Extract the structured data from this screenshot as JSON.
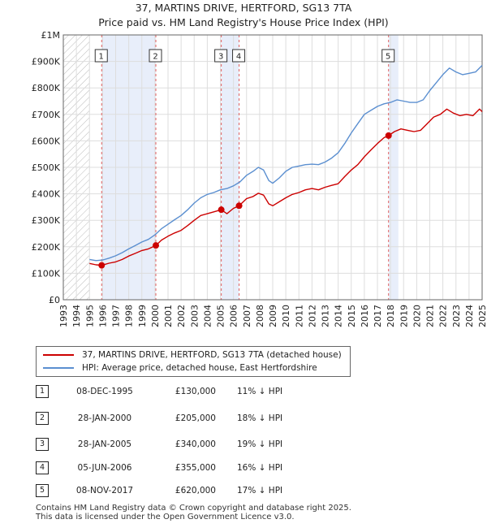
{
  "title_line1": "37, MARTINS DRIVE, HERTFORD, SG13 7TA",
  "title_line2": "Price paid vs. HM Land Registry's House Price Index (HPI)",
  "chart_data": {
    "type": "line",
    "xlim": [
      1993,
      2025
    ],
    "ylim": [
      0,
      1000000
    ],
    "y_ticks": [
      0,
      100000,
      200000,
      300000,
      400000,
      500000,
      600000,
      700000,
      800000,
      900000,
      1000000
    ],
    "y_tick_labels": [
      "£0",
      "£100K",
      "£200K",
      "£300K",
      "£400K",
      "£500K",
      "£600K",
      "£700K",
      "£800K",
      "£900K",
      "£1M"
    ],
    "x_tick_labels": [
      "1993",
      "1994",
      "1995",
      "1996",
      "1997",
      "1998",
      "1999",
      "2000",
      "2001",
      "2002",
      "2003",
      "2004",
      "2005",
      "2006",
      "2007",
      "2008",
      "2009",
      "2010",
      "2011",
      "2012",
      "2013",
      "2014",
      "2015",
      "2016",
      "2017",
      "2018",
      "2019",
      "2020",
      "2021",
      "2022",
      "2023",
      "2024",
      "2025"
    ],
    "hatched_before": 1995.0,
    "colors": {
      "property": "#cc0000",
      "hpi": "#5b8fd0",
      "shade": "#e8eefa",
      "vline": "#e06060"
    },
    "series": [
      {
        "name": "37, MARTINS DRIVE, HERTFORD, SG13 7TA (detached house)",
        "color": "#cc0000",
        "x": [
          1995.0,
          1995.5,
          1995.93,
          1996.5,
          1997.0,
          1997.5,
          1998.0,
          1998.5,
          1999.0,
          1999.5,
          2000.07,
          2000.5,
          2001.0,
          2001.5,
          2002.0,
          2002.5,
          2003.0,
          2003.5,
          2004.0,
          2004.5,
          2005.07,
          2005.5,
          2006.0,
          2006.43,
          2007.0,
          2007.5,
          2007.9,
          2008.3,
          2008.7,
          2009.0,
          2009.5,
          2010.0,
          2010.5,
          2011.0,
          2011.5,
          2012.0,
          2012.5,
          2013.0,
          2013.5,
          2014.0,
          2014.5,
          2015.0,
          2015.5,
          2016.0,
          2016.5,
          2017.0,
          2017.5,
          2017.85,
          2018.3,
          2018.8,
          2019.3,
          2019.8,
          2020.3,
          2020.8,
          2021.3,
          2021.8,
          2022.3,
          2022.8,
          2023.3,
          2023.8,
          2024.3,
          2024.8,
          2025.0
        ],
        "values": [
          137000,
          132000,
          130000,
          138000,
          143000,
          152000,
          165000,
          175000,
          186000,
          192000,
          205000,
          225000,
          240000,
          252000,
          262000,
          280000,
          300000,
          318000,
          325000,
          332000,
          340000,
          325000,
          345000,
          355000,
          382000,
          390000,
          402000,
          395000,
          362000,
          355000,
          370000,
          385000,
          398000,
          405000,
          415000,
          420000,
          415000,
          425000,
          432000,
          438000,
          465000,
          490000,
          510000,
          540000,
          565000,
          590000,
          612000,
          620000,
          635000,
          645000,
          640000,
          635000,
          640000,
          665000,
          690000,
          700000,
          720000,
          705000,
          695000,
          700000,
          695000,
          720000,
          710000
        ]
      },
      {
        "name": "HPI: Average price, detached house, East Hertfordshire",
        "color": "#5b8fd0",
        "x": [
          1995.0,
          1995.5,
          1996.0,
          1996.5,
          1997.0,
          1997.5,
          1998.0,
          1998.5,
          1999.0,
          1999.5,
          2000.0,
          2000.5,
          2001.0,
          2001.5,
          2002.0,
          2002.5,
          2003.0,
          2003.5,
          2004.0,
          2004.5,
          2005.0,
          2005.5,
          2006.0,
          2006.5,
          2007.0,
          2007.5,
          2007.9,
          2008.3,
          2008.7,
          2009.0,
          2009.5,
          2010.0,
          2010.5,
          2011.0,
          2011.5,
          2012.0,
          2012.5,
          2013.0,
          2013.5,
          2014.0,
          2014.5,
          2015.0,
          2015.5,
          2016.0,
          2016.5,
          2017.0,
          2017.5,
          2018.0,
          2018.5,
          2019.0,
          2019.5,
          2020.0,
          2020.5,
          2021.0,
          2021.5,
          2022.0,
          2022.5,
          2023.0,
          2023.5,
          2024.0,
          2024.5,
          2025.0
        ],
        "values": [
          152000,
          148000,
          150000,
          157000,
          166000,
          178000,
          192000,
          205000,
          218000,
          228000,
          245000,
          268000,
          285000,
          302000,
          318000,
          340000,
          365000,
          385000,
          398000,
          405000,
          415000,
          420000,
          430000,
          445000,
          470000,
          485000,
          500000,
          490000,
          450000,
          440000,
          460000,
          485000,
          500000,
          505000,
          510000,
          512000,
          510000,
          520000,
          535000,
          555000,
          590000,
          630000,
          665000,
          700000,
          715000,
          730000,
          740000,
          745000,
          755000,
          750000,
          745000,
          745000,
          755000,
          790000,
          820000,
          850000,
          875000,
          860000,
          850000,
          855000,
          860000,
          885000
        ]
      }
    ],
    "transactions_on_chart": [
      {
        "label": "1",
        "x": 1995.93,
        "value": 130000
      },
      {
        "label": "2",
        "x": 2000.07,
        "value": 205000
      },
      {
        "label": "3",
        "x": 2005.07,
        "value": 340000
      },
      {
        "label": "4",
        "x": 2006.43,
        "value": 355000
      },
      {
        "label": "5",
        "x": 2017.85,
        "value": 620000
      }
    ],
    "shaded_ranges": [
      [
        1995.93,
        2000.07
      ],
      [
        2005.07,
        2006.43
      ],
      [
        2017.85,
        2018.6
      ]
    ]
  },
  "legend": {
    "property": "37, MARTINS DRIVE, HERTFORD, SG13 7TA (detached house)",
    "hpi": "HPI: Average price, detached house, East Hertfordshire"
  },
  "transactions": [
    {
      "num": "1",
      "date": "08-DEC-1995",
      "price": "£130,000",
      "hpi": "11% ↓ HPI"
    },
    {
      "num": "2",
      "date": "28-JAN-2000",
      "price": "£205,000",
      "hpi": "18% ↓ HPI"
    },
    {
      "num": "3",
      "date": "28-JAN-2005",
      "price": "£340,000",
      "hpi": "19% ↓ HPI"
    },
    {
      "num": "4",
      "date": "05-JUN-2006",
      "price": "£355,000",
      "hpi": "16% ↓ HPI"
    },
    {
      "num": "5",
      "date": "08-NOV-2017",
      "price": "£620,000",
      "hpi": "17% ↓ HPI"
    }
  ],
  "footer": {
    "line1": "Contains HM Land Registry data © Crown copyright and database right 2025.",
    "line2": "This data is licensed under the Open Government Licence v3.0."
  }
}
